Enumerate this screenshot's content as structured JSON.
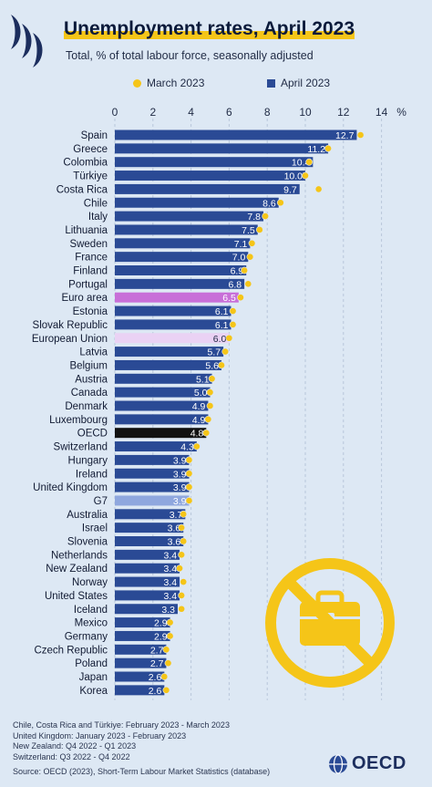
{
  "header": {
    "title": "Unemployment rates, April 2023",
    "subtitle": "Total, % of total labour force, seasonally adjusted"
  },
  "legend": {
    "march_label": "March 2023",
    "april_label": "April 2023"
  },
  "footer": {
    "notes": [
      "Chile, Costa Rica and Türkiye: February 2023 - March 2023",
      "United Kingdom: January 2023 - February 2023",
      "New Zealand: Q4 2022 - Q1 2023",
      "Switzerland: Q3 2022 - Q4 2022"
    ],
    "source": "Source: OECD (2023), Short-Term Labour Market Statistics (database)",
    "brand": "OECD"
  },
  "colors": {
    "background": "#dde8f4",
    "bar": "#2a4a95",
    "euro_area": "#c86fd8",
    "european_union": "#ead2f4",
    "oecd": "#111111",
    "g7": "#8fa7de",
    "march_dot": "#f5c518"
  },
  "icons": [
    "oecd-logo-icon",
    "no-work-briefcase-icon",
    "oecd-globe-icon"
  ],
  "chart_data": {
    "type": "bar",
    "orientation": "horizontal",
    "x_ticks": [
      "0",
      "2",
      "4",
      "6",
      "8",
      "10",
      "12",
      "14"
    ],
    "x_unit": "%",
    "xlim": [
      0,
      14
    ],
    "grid": true,
    "categories": [
      "Spain",
      "Greece",
      "Colombia",
      "Türkiye",
      "Costa Rica",
      "Chile",
      "Italy",
      "Lithuania",
      "Sweden",
      "France",
      "Finland",
      "Portugal",
      "Euro area",
      "Estonia",
      "Slovak Republic",
      "European Union",
      "Latvia",
      "Belgium",
      "Austria",
      "Canada",
      "Denmark",
      "Luxembourg",
      "OECD",
      "Switzerland",
      "Hungary",
      "Ireland",
      "United Kingdom",
      "G7",
      "Australia",
      "Israel",
      "Slovenia",
      "Netherlands",
      "New Zealand",
      "Norway",
      "United States",
      "Iceland",
      "Mexico",
      "Germany",
      "Czech Republic",
      "Poland",
      "Japan",
      "Korea"
    ],
    "series": [
      {
        "name": "April 2023",
        "marker": "bar",
        "values": [
          12.7,
          11.2,
          10.4,
          10.0,
          9.7,
          8.6,
          7.8,
          7.5,
          7.1,
          7.0,
          6.9,
          6.8,
          6.5,
          6.1,
          6.1,
          6.0,
          5.7,
          5.6,
          5.1,
          5.0,
          4.9,
          4.9,
          4.8,
          4.3,
          3.9,
          3.9,
          3.9,
          3.9,
          3.7,
          3.6,
          3.6,
          3.4,
          3.4,
          3.4,
          3.4,
          3.3,
          2.9,
          2.9,
          2.7,
          2.7,
          2.6,
          2.6
        ]
      },
      {
        "name": "March 2023",
        "marker": "dot",
        "values": [
          12.9,
          11.2,
          10.2,
          10.0,
          10.7,
          8.7,
          7.9,
          7.6,
          7.2,
          7.1,
          6.8,
          7.0,
          6.6,
          6.2,
          6.2,
          6.0,
          5.8,
          5.6,
          5.1,
          5.0,
          5.0,
          4.9,
          4.8,
          4.3,
          3.9,
          3.9,
          3.9,
          3.9,
          3.6,
          3.5,
          3.6,
          3.5,
          3.4,
          3.6,
          3.5,
          3.5,
          2.9,
          2.9,
          2.7,
          2.8,
          2.6,
          2.7
        ]
      }
    ],
    "highlight": {
      "Euro area": "#c86fd8",
      "European Union": "#ead2f4",
      "OECD": "#111111",
      "G7": "#8fa7de"
    }
  }
}
